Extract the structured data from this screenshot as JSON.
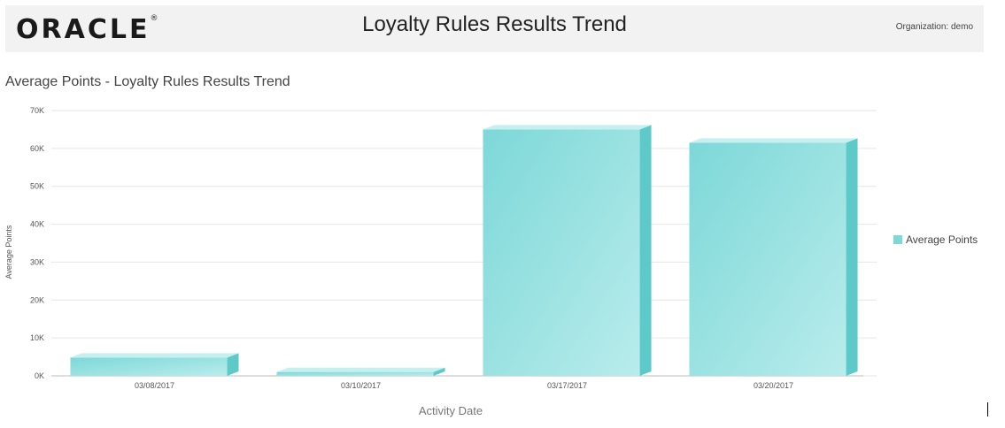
{
  "header": {
    "logo": "ORACLE",
    "logo_mark": "®",
    "title": "Loyalty Rules Results Trend",
    "organization_label": "Organization:",
    "organization_value": "demo"
  },
  "chart_data": {
    "type": "bar",
    "title": "Average Points - Loyalty Rules Results Trend",
    "xlabel": "Activity Date",
    "ylabel": "Average Points",
    "categories": [
      "03/08/2017",
      "03/10/2017",
      "03/17/2017",
      "03/20/2017"
    ],
    "series": [
      {
        "name": "Average Points",
        "values": [
          4800,
          1000,
          65000,
          61500
        ]
      }
    ],
    "ylim": [
      0,
      70000
    ],
    "yticks": [
      "0K",
      "10K",
      "20K",
      "30K",
      "40K",
      "50K",
      "60K",
      "70K"
    ],
    "grid": true,
    "legend_position": "right",
    "colors": {
      "bar_front": "#7dd8d8",
      "bar_light": "#b9ecec",
      "bar_side": "#5ec9c9",
      "bar_top": "#c6f0f0",
      "grid": "#e6e6e6"
    }
  }
}
